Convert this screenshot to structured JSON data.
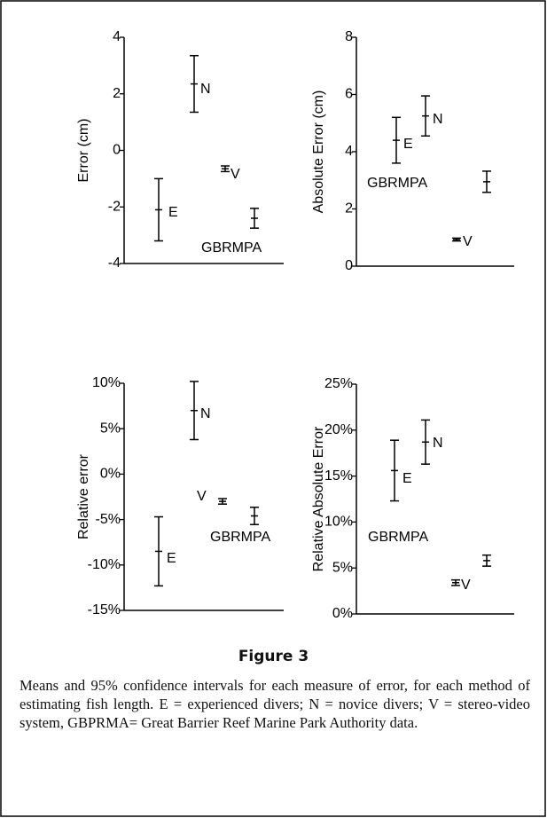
{
  "chart_data": [
    {
      "type": "errorbar",
      "y_label": "Error (cm)",
      "categories": [
        "E",
        "N",
        "V",
        "GBRMPA"
      ],
      "values": [
        -2.1,
        2.35,
        -0.65,
        -2.4
      ],
      "errors": [
        1.1,
        1.0,
        0.1,
        0.35
      ],
      "ylim": [
        -4,
        4
      ],
      "yticks": [
        -4,
        -2,
        0,
        2,
        4
      ]
    },
    {
      "type": "errorbar",
      "y_label": "Absolute Error (cm)",
      "categories": [
        "E",
        "N",
        "V",
        "GBRMPA"
      ],
      "values": [
        4.4,
        5.25,
        0.93,
        2.95
      ],
      "errors": [
        0.8,
        0.7,
        0.05,
        0.37
      ],
      "ylim": [
        0,
        8
      ],
      "yticks": [
        0,
        2,
        4,
        6,
        8
      ]
    },
    {
      "type": "errorbar",
      "y_label": "Relative error",
      "categories": [
        "E",
        "N",
        "V",
        "GBRMPA"
      ],
      "values": [
        -8.5,
        7.0,
        -3.0,
        -4.6
      ],
      "errors": [
        3.8,
        3.2,
        0.3,
        0.95
      ],
      "ylim": [
        -15,
        10
      ],
      "yticks": [
        {
          "value": -15,
          "label": "-15%"
        },
        {
          "value": -10,
          "label": "-10%"
        },
        {
          "value": -5,
          "label": "-5%"
        },
        {
          "value": 0,
          "label": "0%"
        },
        {
          "value": 5,
          "label": "5%"
        },
        {
          "value": 10,
          "label": "10%"
        }
      ]
    },
    {
      "type": "errorbar",
      "y_label": "Relative Absolute Error",
      "categories": [
        "E",
        "N",
        "V",
        "GBRMPA"
      ],
      "values": [
        15.6,
        18.7,
        3.4,
        5.8
      ],
      "errors": [
        3.3,
        2.4,
        0.3,
        0.6
      ],
      "ylim": [
        0,
        25
      ],
      "yticks": [
        {
          "value": 0,
          "label": "0%"
        },
        {
          "value": 5,
          "label": "5%"
        },
        {
          "value": 10,
          "label": "10%"
        },
        {
          "value": 15,
          "label": "15%"
        },
        {
          "value": 20,
          "label": "20%"
        },
        {
          "value": 25,
          "label": "25%"
        }
      ]
    }
  ],
  "caption": {
    "title": "Figure 3",
    "text": "Means and 95% confidence intervals for each measure of error, for each method of estimating fish length. E = experienced divers; N = novice divers; V = stereo-video system, GBPRMA= Great Barrier Reef Marine Park Authority data."
  }
}
